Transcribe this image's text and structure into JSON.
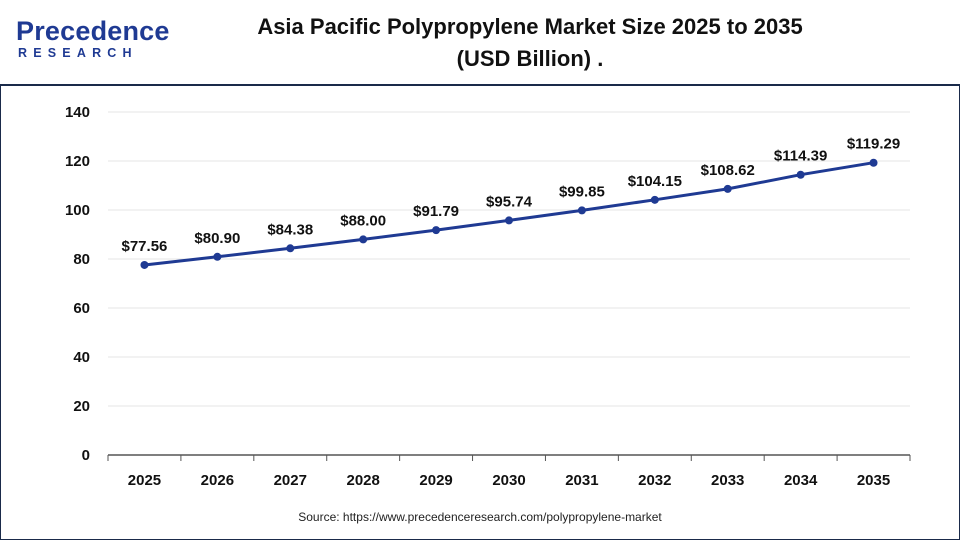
{
  "logo": {
    "word": "Precedence",
    "sub": "RESEARCH"
  },
  "title_line1": "Asia Pacific Polypropylene Market Size 2025 to 2035",
  "title_line2": "(USD Billion) .",
  "source": "Source: https://www.precedenceresearch.com/polypropylene-market",
  "colors": {
    "line": "#1f3a93",
    "brand": "#1f3a93",
    "grid": "#e6e6e6"
  },
  "chart_data": {
    "type": "line",
    "title": "Asia Pacific Polypropylene Market Size 2025 to 2035 (USD Billion) .",
    "xlabel": "",
    "ylabel": "",
    "categories": [
      "2025",
      "2026",
      "2027",
      "2028",
      "2029",
      "2030",
      "2031",
      "2032",
      "2033",
      "2034",
      "2035"
    ],
    "series": [
      {
        "values": [
          77.56,
          80.9,
          84.38,
          88.0,
          91.79,
          95.74,
          99.85,
          104.15,
          108.62,
          114.39,
          119.29
        ]
      }
    ],
    "data_labels": [
      "$77.56",
      "$80.90",
      "$84.38",
      "$88.00",
      "$91.79",
      "$95.74",
      "$99.85",
      "$104.15",
      "$108.62",
      "$114.39",
      "$119.29"
    ],
    "yticks": [
      0,
      20,
      40,
      60,
      80,
      100,
      120,
      140
    ],
    "ylim": [
      0,
      140
    ],
    "grid": true,
    "legend": "none"
  }
}
